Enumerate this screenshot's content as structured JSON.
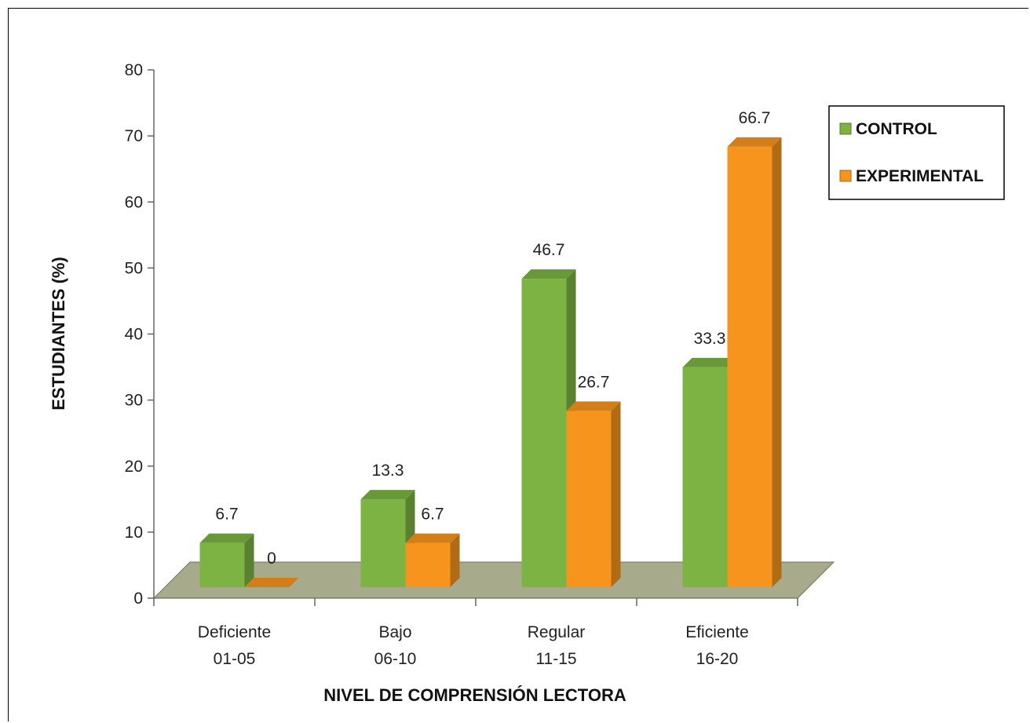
{
  "chart_data": {
    "type": "bar",
    "title": "",
    "xlabel": "NIVEL DE COMPRENSIÓN LECTORA",
    "ylabel": "ESTUDIANTES  (%)",
    "ylim": [
      0,
      80
    ],
    "yticks": [
      0,
      10,
      20,
      30,
      40,
      50,
      60,
      70,
      80
    ],
    "categories": [
      {
        "name": "Deficiente",
        "range": "01-05"
      },
      {
        "name": "Bajo",
        "range": "06-10"
      },
      {
        "name": "Regular",
        "range": "11-15"
      },
      {
        "name": "Eficiente",
        "range": "16-20"
      }
    ],
    "series": [
      {
        "name": "CONTROL",
        "values": [
          6.7,
          13.3,
          46.7,
          33.3
        ],
        "labels": [
          "6.7",
          "13.3",
          "46.7",
          "33.3"
        ],
        "color": "#7cb342"
      },
      {
        "name": "EXPERIMENTAL",
        "values": [
          0,
          6.7,
          26.7,
          66.7
        ],
        "labels": [
          "0",
          "6.7",
          "26.7",
          "66.7"
        ],
        "color": "#f7941d"
      }
    ],
    "grid": false,
    "legend_position": "top-right",
    "floor_color": "#a7ab8c"
  }
}
